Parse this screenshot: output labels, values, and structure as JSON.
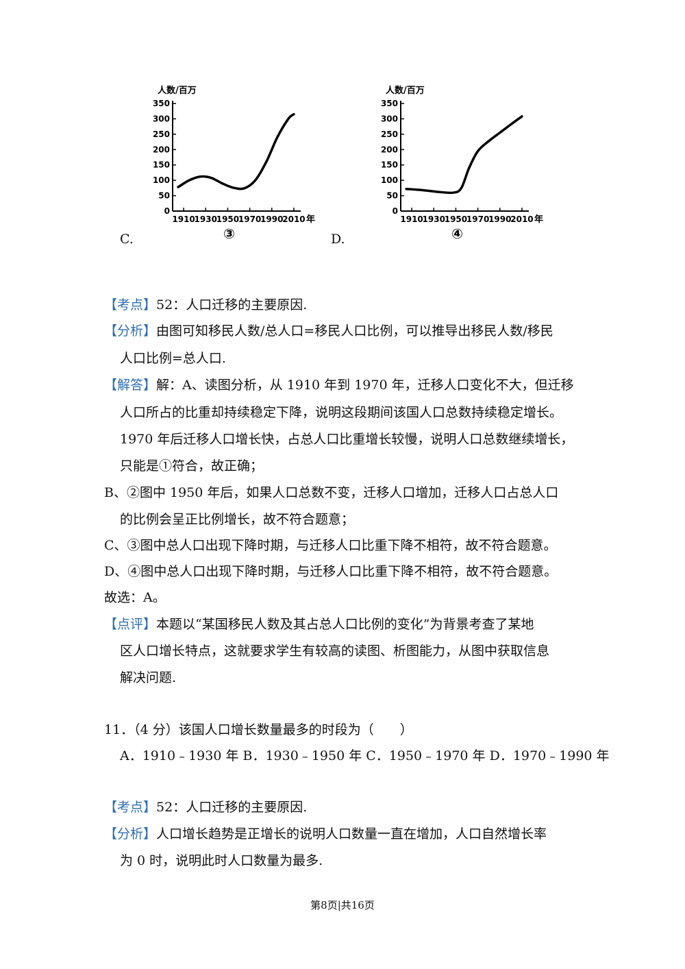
{
  "chart_data": [
    {
      "type": "line",
      "ylabel": "人数/百万",
      "xlabel_unit": "年",
      "yticks": [
        0,
        50,
        100,
        150,
        200,
        250,
        300,
        350
      ],
      "xticks": [
        1910,
        1930,
        1950,
        1970,
        1990,
        2010
      ],
      "ylim": [
        0,
        350
      ],
      "xlim": [
        1900,
        2015
      ],
      "x": [
        1905,
        1915,
        1925,
        1935,
        1945,
        1955,
        1965,
        1975,
        1985,
        1995,
        2005,
        2010
      ],
      "values": [
        78,
        100,
        112,
        108,
        90,
        76,
        74,
        100,
        160,
        240,
        300,
        315
      ],
      "caption": "③"
    },
    {
      "type": "line",
      "ylabel": "人数/百万",
      "xlabel_unit": "年",
      "yticks": [
        0,
        50,
        100,
        150,
        200,
        250,
        300,
        350
      ],
      "xticks": [
        1910,
        1930,
        1950,
        1970,
        1990,
        2010
      ],
      "ylim": [
        0,
        350
      ],
      "xlim": [
        1900,
        2015
      ],
      "x": [
        1905,
        1920,
        1935,
        1948,
        1955,
        1962,
        1970,
        1980,
        1990,
        2000,
        2010
      ],
      "values": [
        72,
        68,
        62,
        60,
        75,
        140,
        195,
        228,
        255,
        282,
        308
      ],
      "caption": "④"
    }
  ],
  "options_row": {
    "c": "C.",
    "d": "D."
  },
  "q10": {
    "kaodian_tag": "【考点】",
    "kaodian": "52：人口迁移的主要原因.",
    "fenxi_tag": "【分析】",
    "fenxi_1": "由图可知移民人数/总人口=移民人口比例，可以推导出移民人数/移民",
    "fenxi_2": "人口比例=总人口.",
    "jieda_tag": "【解答】",
    "jieda_1": "解：A、读图分析，从 1910 年到 1970 年，迁移人口变化不大，但迁移",
    "jieda_2": "人口所占的比重却持续稳定下降，说明这段期间该国人口总数持续稳定增长。",
    "jieda_3": "1970 年后迁移人口增长快，占总人口比重增长较慢，说明人口总数继续增长，",
    "jieda_4": "只能是①符合，故正确；",
    "b_1": "B、②图中 1950 年后，如果人口总数不变，迁移人口增加，迁移人口占总人口",
    "b_2": "的比例会呈正比例增长，故不符合题意；",
    "c_line": "C、③图中总人口出现下降时期，与迁移人口比重下降不相符，故不符合题意。",
    "d_line": "D、④图中总人口出现下降时期，与迁移人口比重下降不相符，故不符合题意。",
    "choice": "故选：A。",
    "dianping_tag": "【点评】",
    "dianping_1": "本题以“某国移民人数及其占总人口比例的变化”为背景考查了某地",
    "dianping_2": "区人口增长特点，这就要求学生有较高的读图、析图能力，从图中获取信息",
    "dianping_3": "解决问题."
  },
  "q11": {
    "question": "11．（4 分）该国人口增长数量最多的时段为（　　）",
    "options": "A．1910﹣1930 年  B．1930﹣1950 年   C．1950﹣1970 年  D．1970﹣1990 年",
    "kaodian_tag": "【考点】",
    "kaodian": "52：人口迁移的主要原因.",
    "fenxi_tag": "【分析】",
    "fenxi_1": "人口增长趋势是正增长的说明人口数量一直在增加，人口自然增长率",
    "fenxi_2": "为 0 时，说明此时人口数量为最多."
  },
  "footer": "第8页|共16页"
}
